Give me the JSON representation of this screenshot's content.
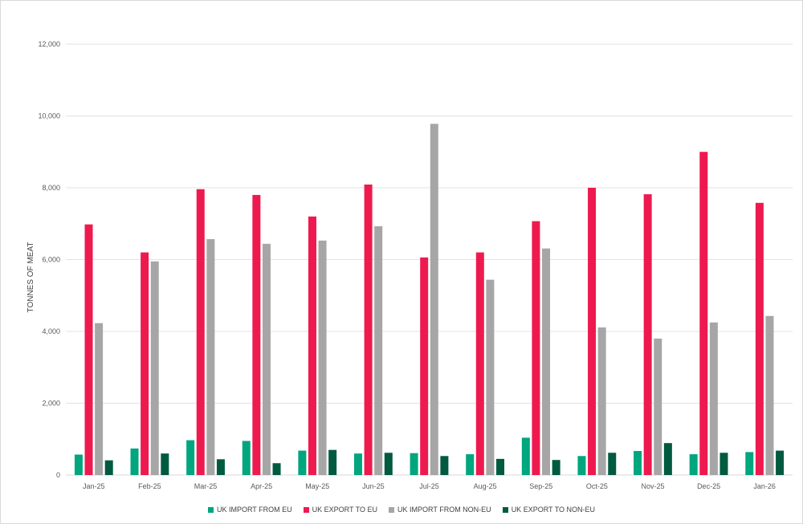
{
  "chart_data": {
    "type": "bar",
    "title": "",
    "xlabel": "",
    "ylabel": "TONNES OF MEAT",
    "ylim": [
      0,
      12000
    ],
    "yticks": [
      0,
      2000,
      4000,
      6000,
      8000,
      10000,
      12000
    ],
    "ytick_labels": [
      "0",
      "2,000",
      "4,000",
      "6,000",
      "8,000",
      "10,000",
      "12,000"
    ],
    "grid": true,
    "legend_position": "bottom",
    "categories": [
      "Jan-25",
      "Feb-25",
      "Mar-25",
      "Apr-25",
      "May-25",
      "Jun-25",
      "Jul-25",
      "Aug-25",
      "Sep-25",
      "Oct-25",
      "Nov-25",
      "Dec-25",
      "Jan-26"
    ],
    "series": [
      {
        "name": "UK IMPORT FROM EU",
        "color": "#00a67e",
        "values": [
          570,
          740,
          970,
          950,
          680,
          600,
          610,
          580,
          1040,
          530,
          670,
          580,
          640
        ]
      },
      {
        "name": "UK EXPORT TO EU",
        "color": "#ee1a4f",
        "values": [
          6980,
          6200,
          7960,
          7800,
          7200,
          8090,
          6060,
          6200,
          7070,
          8000,
          7820,
          9000,
          7580
        ]
      },
      {
        "name": "UK IMPORT FROM NON-EU",
        "color": "#a6a6a6",
        "values": [
          4230,
          5950,
          6570,
          6440,
          6530,
          6930,
          9780,
          5440,
          6310,
          4110,
          3800,
          4250,
          4430
        ]
      },
      {
        "name": "UK EXPORT TO NON-EU",
        "color": "#005a40",
        "values": [
          410,
          600,
          440,
          330,
          700,
          620,
          530,
          450,
          420,
          620,
          890,
          620,
          680
        ]
      }
    ]
  }
}
